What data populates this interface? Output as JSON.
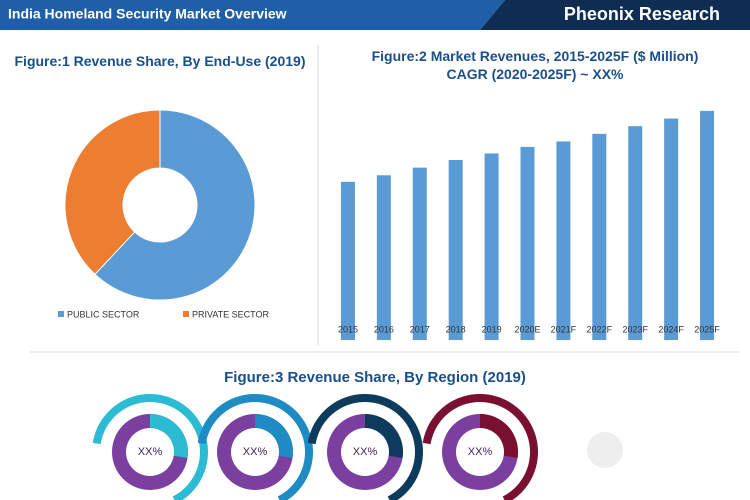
{
  "header": {
    "title": "India Homeland Security Market Overview",
    "brand": "Pheonix Research"
  },
  "chart_data": [
    {
      "type": "donut",
      "title": "Figure:1 Revenue Share, By End-Use (2019)",
      "categories": [
        "PUBLIC SECTOR",
        "PRIVATE SECTOR"
      ],
      "values": [
        62,
        38
      ],
      "colors": [
        "#5b9bd5",
        "#ed7d31"
      ]
    },
    {
      "type": "bar",
      "title": "Figure:2 Market Revenues, 2015-2025F ($ Million) CAGR (2020-2025F) ~ XX%",
      "categories": [
        "2015",
        "2016",
        "2017",
        "2018",
        "2019",
        "2020E",
        "2021F",
        "2022F",
        "2023F",
        "2024F",
        "2025F"
      ],
      "values": [
        145,
        151,
        158,
        165,
        171,
        177,
        182,
        189,
        196,
        203,
        210
      ],
      "color": "#5b9bd5",
      "ylim": [
        0,
        220
      ]
    },
    {
      "type": "region-donuts",
      "title": "Figure:3 Revenue Share, By Region (2019)",
      "labels": [
        "XX%",
        "XX%",
        "XX%",
        "XX%"
      ],
      "colors": [
        "#2bbcd4",
        "#1e8bc3",
        "#0d3b5e",
        "#7a1030"
      ]
    }
  ]
}
